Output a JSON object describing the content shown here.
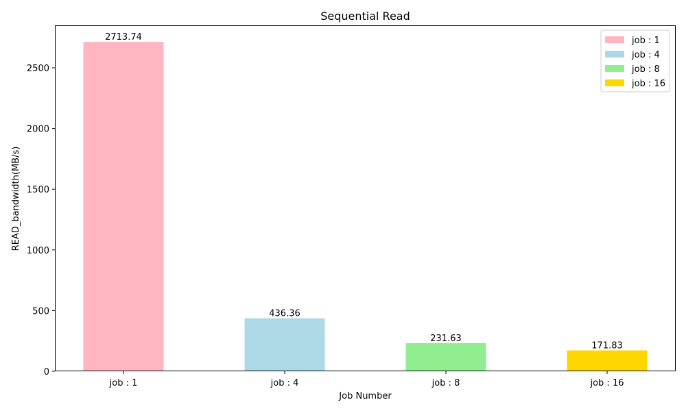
{
  "chart_data": {
    "type": "bar",
    "title": "Sequential Read",
    "xlabel": "Job Number",
    "ylabel": "READ_bandwidth(MB/s)",
    "categories": [
      "job : 1",
      "job : 4",
      "job : 8",
      "job : 16"
    ],
    "values": [
      2713.74,
      436.36,
      231.63,
      171.83
    ],
    "value_labels": [
      "2713.74",
      "436.36",
      "231.63",
      "171.83"
    ],
    "colors": [
      "#ffb6c1",
      "#add8e6",
      "#90ee90",
      "#ffd700"
    ],
    "ylim": [
      0,
      2850
    ],
    "yticks": [
      0,
      500,
      1000,
      1500,
      2000,
      2500
    ],
    "grid": false,
    "legend": {
      "placement": "top-right",
      "entries": [
        "job : 1",
        "job : 4",
        "job : 8",
        "job : 16"
      ]
    }
  }
}
